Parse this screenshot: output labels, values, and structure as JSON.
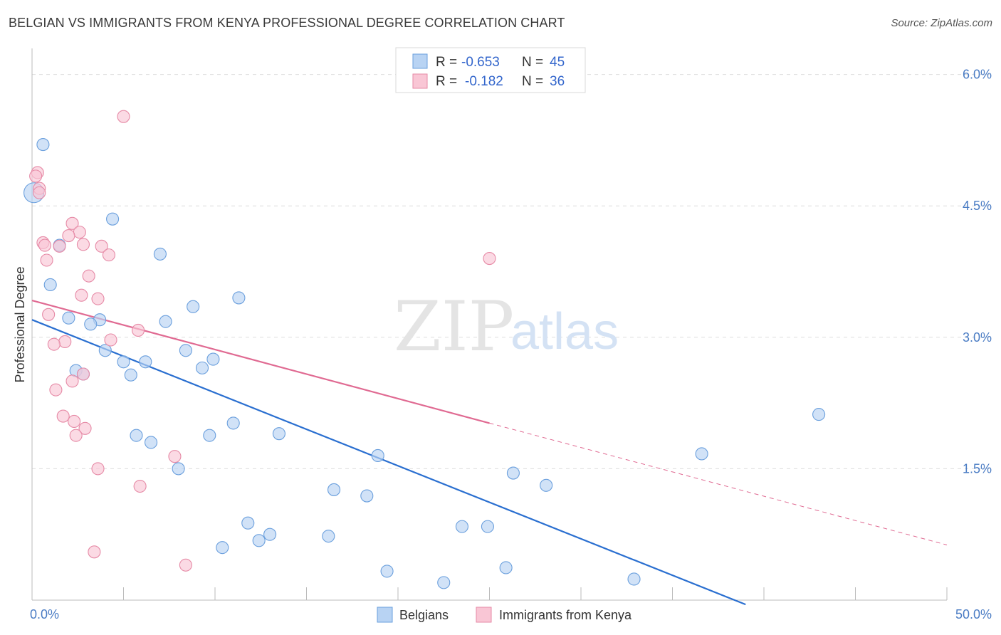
{
  "title": "BELGIAN VS IMMIGRANTS FROM KENYA PROFESSIONAL DEGREE CORRELATION CHART",
  "source": "Source: ZipAtlas.com",
  "watermark": {
    "zip": "ZIP",
    "atlas": "atlas"
  },
  "colors": {
    "belgians_fill": "#b8d3f3",
    "belgians_stroke": "#6a9fdd",
    "belgians_line": "#2a6fd0",
    "kenya_fill": "#f9c6d5",
    "kenya_stroke": "#e68aa6",
    "kenya_line": "#e06a92",
    "grid": "#dddddd",
    "tick_text": "#4a7cc4"
  },
  "legend": {
    "rows": [
      {
        "r_label": "R =",
        "r_value": "-0.653",
        "n_label": "N =",
        "n_value": "45"
      },
      {
        "r_label": "R =",
        "r_value": "-0.182",
        "n_label": "N =",
        "n_value": "36"
      }
    ]
  },
  "bottom_legend": [
    "Belgians",
    "Immigrants from Kenya"
  ],
  "chart_data": {
    "type": "scatter",
    "title": "BELGIAN VS IMMIGRANTS FROM KENYA PROFESSIONAL DEGREE CORRELATION CHART",
    "xlabel": "",
    "ylabel": "Professional Degree",
    "xlim": [
      0,
      50
    ],
    "ylim": [
      0,
      6.2
    ],
    "x_tick_labels": [
      "0.0%",
      "50.0%"
    ],
    "y_ticks": [
      1.5,
      3.0,
      4.5,
      6.0
    ],
    "y_tick_labels": [
      "1.5%",
      "3.0%",
      "4.5%",
      "6.0%"
    ],
    "grid": "horizontal dashed",
    "legend_position": "top-center",
    "series": [
      {
        "name": "Belgians",
        "r": -0.653,
        "n": 45,
        "trend": {
          "x": [
            0,
            39
          ],
          "y": [
            3.2,
            -0.05
          ]
        },
        "points": [
          [
            0.6,
            5.2
          ],
          [
            0.1,
            4.65
          ],
          [
            4.4,
            4.35
          ],
          [
            1.5,
            4.05
          ],
          [
            7.0,
            3.95
          ],
          [
            1.0,
            3.6
          ],
          [
            11.3,
            3.45
          ],
          [
            8.8,
            3.35
          ],
          [
            2.0,
            3.22
          ],
          [
            3.7,
            3.2
          ],
          [
            7.3,
            3.18
          ],
          [
            3.2,
            3.15
          ],
          [
            4.0,
            2.85
          ],
          [
            8.4,
            2.85
          ],
          [
            5.0,
            2.72
          ],
          [
            6.2,
            2.72
          ],
          [
            9.9,
            2.75
          ],
          [
            9.3,
            2.65
          ],
          [
            2.4,
            2.62
          ],
          [
            2.8,
            2.58
          ],
          [
            5.4,
            2.57
          ],
          [
            43.0,
            2.12
          ],
          [
            11.0,
            2.02
          ],
          [
            5.7,
            1.88
          ],
          [
            6.5,
            1.8
          ],
          [
            9.7,
            1.88
          ],
          [
            13.5,
            1.9
          ],
          [
            18.9,
            1.65
          ],
          [
            36.6,
            1.67
          ],
          [
            8.0,
            1.5
          ],
          [
            26.3,
            1.45
          ],
          [
            28.1,
            1.31
          ],
          [
            16.5,
            1.26
          ],
          [
            18.3,
            1.19
          ],
          [
            11.8,
            0.88
          ],
          [
            23.5,
            0.84
          ],
          [
            24.9,
            0.84
          ],
          [
            13.0,
            0.75
          ],
          [
            16.2,
            0.73
          ],
          [
            12.4,
            0.68
          ],
          [
            10.4,
            0.6
          ],
          [
            25.9,
            0.37
          ],
          [
            19.4,
            0.33
          ],
          [
            32.9,
            0.24
          ],
          [
            22.5,
            0.2
          ]
        ]
      },
      {
        "name": "Immigrants from Kenya",
        "r": -0.182,
        "n": 36,
        "trend": {
          "x": [
            0,
            25
          ],
          "y": [
            3.42,
            2.02
          ]
        },
        "trend_dashed": {
          "x": [
            25,
            50
          ],
          "y": [
            2.02,
            0.63
          ]
        },
        "points": [
          [
            5.0,
            5.52
          ],
          [
            0.3,
            4.88
          ],
          [
            0.2,
            4.84
          ],
          [
            0.4,
            4.7
          ],
          [
            0.4,
            4.65
          ],
          [
            2.2,
            4.3
          ],
          [
            2.6,
            4.2
          ],
          [
            2.0,
            4.16
          ],
          [
            0.6,
            4.08
          ],
          [
            2.8,
            4.06
          ],
          [
            0.7,
            4.05
          ],
          [
            3.8,
            4.04
          ],
          [
            1.5,
            4.04
          ],
          [
            4.2,
            3.94
          ],
          [
            25.0,
            3.9
          ],
          [
            0.8,
            3.88
          ],
          [
            3.1,
            3.7
          ],
          [
            2.7,
            3.48
          ],
          [
            3.6,
            3.44
          ],
          [
            0.9,
            3.26
          ],
          [
            5.8,
            3.08
          ],
          [
            4.3,
            2.97
          ],
          [
            1.8,
            2.95
          ],
          [
            1.2,
            2.92
          ],
          [
            2.8,
            2.58
          ],
          [
            2.2,
            2.5
          ],
          [
            1.3,
            2.4
          ],
          [
            1.7,
            2.1
          ],
          [
            2.3,
            2.04
          ],
          [
            2.9,
            1.96
          ],
          [
            2.4,
            1.88
          ],
          [
            7.8,
            1.64
          ],
          [
            3.6,
            1.5
          ],
          [
            5.9,
            1.3
          ],
          [
            3.4,
            0.55
          ],
          [
            8.4,
            0.4
          ]
        ]
      }
    ]
  }
}
